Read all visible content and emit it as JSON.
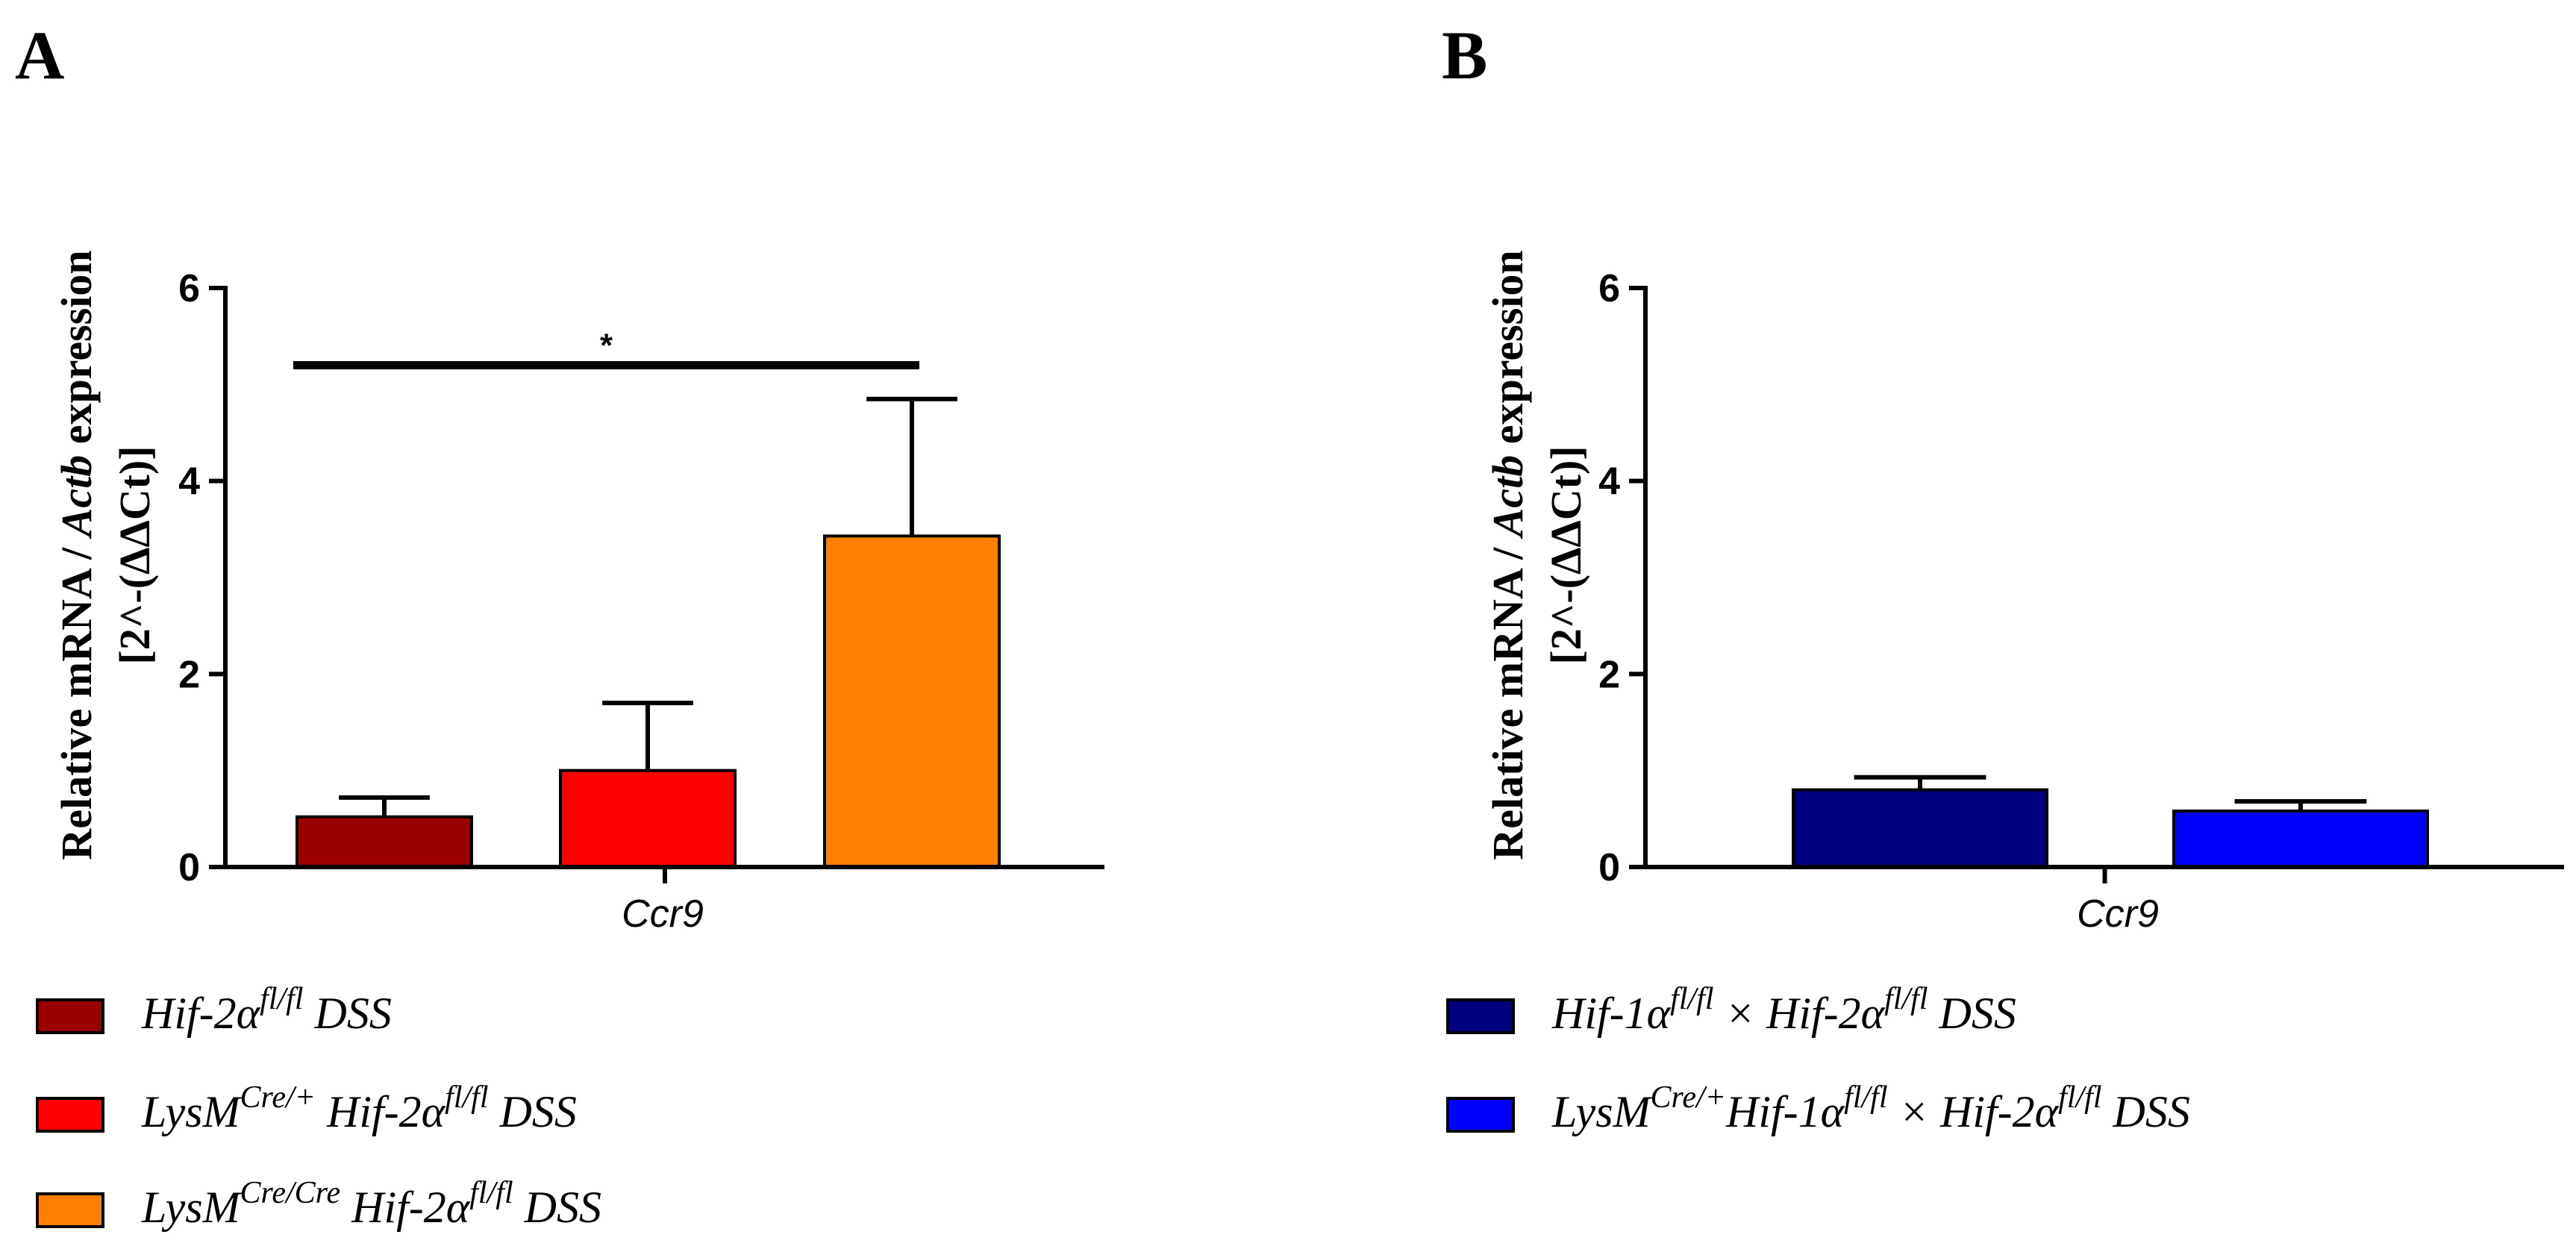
{
  "chart_data": [
    {
      "panel": "A",
      "type": "bar",
      "category": "Ccr9",
      "ylabel": "Relative mRNA / Actb expression",
      "ylabel_line2": "[2^-(ΔΔCt)]",
      "ylim": [
        0,
        6
      ],
      "yticks": [
        0,
        2,
        4,
        6
      ],
      "grid": false,
      "legend_position": "bottom-left",
      "series": [
        {
          "name": "Hif-2α fl/fl DSS",
          "value": 0.52,
          "error": 0.2,
          "color": "#9b0000",
          "legend": [
            {
              "t": "Hif-2α"
            },
            {
              "t": "fl/fl",
              "sup": true
            },
            {
              "t": " DSS"
            }
          ]
        },
        {
          "name": "LysM Cre/+ Hif-2α fl/fl DSS",
          "value": 1.0,
          "error": 0.7,
          "color": "#ff0000",
          "legend": [
            {
              "t": "LysM"
            },
            {
              "t": "Cre/+",
              "sup": true
            },
            {
              "t": " Hif-2α"
            },
            {
              "t": "fl/fl",
              "sup": true
            },
            {
              "t": " DSS"
            }
          ]
        },
        {
          "name": "LysM Cre/Cre Hif-2α fl/fl DSS",
          "value": 3.43,
          "error": 1.42,
          "color": "#ff8000",
          "legend": [
            {
              "t": "LysM"
            },
            {
              "t": "Cre/Cre",
              "sup": true
            },
            {
              "t": " Hif-2α"
            },
            {
              "t": "fl/fl",
              "sup": true
            },
            {
              "t": " DSS"
            }
          ]
        }
      ],
      "significance": [
        {
          "from": 0,
          "to": 2,
          "label": "*",
          "y": 5.2
        }
      ]
    },
    {
      "panel": "B",
      "type": "bar",
      "category": "Ccr9",
      "ylabel": "Relative mRNA / Actb expression",
      "ylabel_line2": "[2^-(ΔΔCt)]",
      "ylim": [
        0,
        6
      ],
      "yticks": [
        0,
        2,
        4,
        6
      ],
      "grid": false,
      "legend_position": "bottom-left",
      "series": [
        {
          "name": "Hif-1α fl/fl × Hif-2α fl/fl DSS",
          "value": 0.8,
          "error": 0.13,
          "color": "#000080",
          "legend": [
            {
              "t": "Hif-1α"
            },
            {
              "t": "fl/fl",
              "sup": true
            },
            {
              "t": " × Hif-2α"
            },
            {
              "t": "fl/fl",
              "sup": true
            },
            {
              "t": " DSS"
            }
          ]
        },
        {
          "name": "LysM Cre/+ Hif-1α fl/fl × Hif-2α fl/fl DSS",
          "value": 0.58,
          "error": 0.1,
          "color": "#0000ff",
          "legend": [
            {
              "t": "LysM"
            },
            {
              "t": "Cre/+",
              "sup": true
            },
            {
              "t": "Hif-1α"
            },
            {
              "t": "fl/fl",
              "sup": true
            },
            {
              "t": " × Hif-2α"
            },
            {
              "t": "fl/fl",
              "sup": true
            },
            {
              "t": " DSS"
            }
          ]
        }
      ],
      "significance": []
    }
  ]
}
